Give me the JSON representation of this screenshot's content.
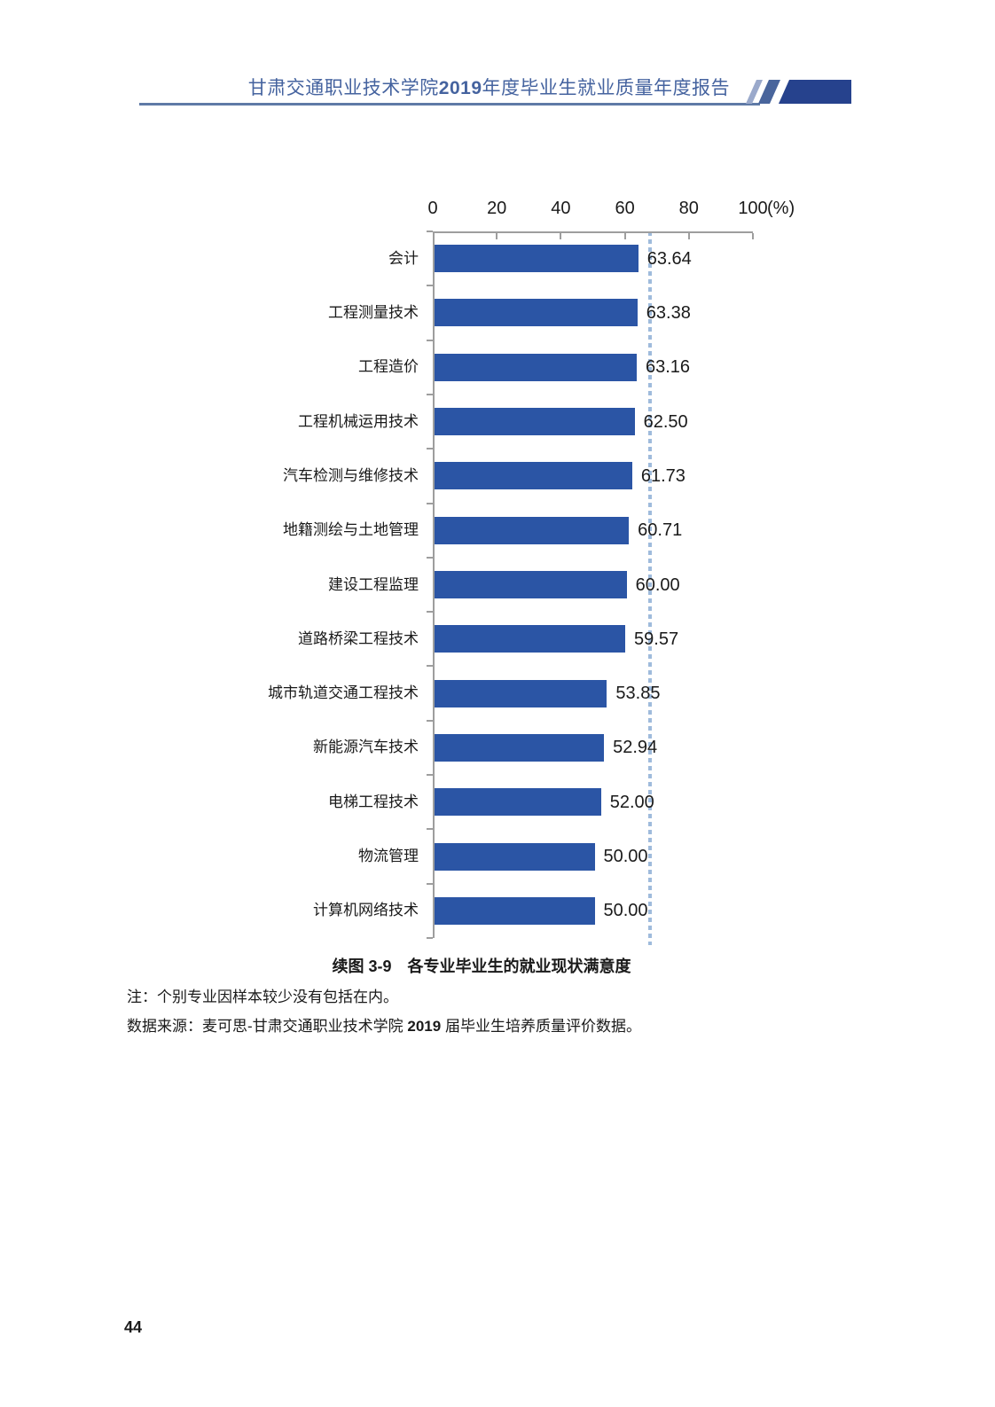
{
  "header": {
    "title_prefix": "甘肃交通职业技术学院",
    "title_year": "2019",
    "title_suffix": "年度毕业生就业质量年度报告"
  },
  "caption": "续图 3-9　各专业毕业生的就业现状满意度",
  "note": "注：个别专业因样本较少没有包括在内。",
  "source": {
    "prefix": "数据来源：麦可思-甘肃交通职业技术学院 ",
    "bold": "2019",
    "suffix": " 届毕业生培养质量评价数据。"
  },
  "page_number": "44",
  "colors": {
    "bar": "#2b55a5",
    "ref-line": "#9fbbdc",
    "axis": "#9e9e9e",
    "text": "#1a1a1a",
    "header-text": "#45639f",
    "header-rule": "#5f7aa6",
    "deco-light": "#9aa9cb",
    "deco-medium": "#49659c",
    "deco-dark": "#26428d"
  },
  "chart_data": {
    "type": "bar",
    "orientation": "horizontal",
    "title": "续图 3-9 各专业毕业生的就业现状满意度",
    "categories": [
      "会计",
      "工程测量技术",
      "工程造价",
      "工程机械运用技术",
      "汽车检测与维修技术",
      "地籍测绘与土地管理",
      "建设工程监理",
      "道路桥梁工程技术",
      "城市轨道交通工程技术",
      "新能源汽车技术",
      "电梯工程技术",
      "物流管理",
      "计算机网络技术"
    ],
    "values": [
      63.64,
      63.38,
      63.16,
      62.5,
      61.73,
      60.71,
      60.0,
      59.57,
      53.85,
      52.94,
      52.0,
      50.0,
      50.0
    ],
    "value_labels": [
      "63.64",
      "63.38",
      "63.16",
      "62.50",
      "61.73",
      "60.71",
      "60.00",
      "59.57",
      "53.85",
      "52.94",
      "52.00",
      "50.00",
      "50.00"
    ],
    "xlim": [
      0,
      100
    ],
    "xticks": [
      0,
      20,
      40,
      60,
      80,
      100
    ],
    "axis_unit": "(%)",
    "reference_line": 68,
    "grid": false,
    "legend": "none"
  }
}
